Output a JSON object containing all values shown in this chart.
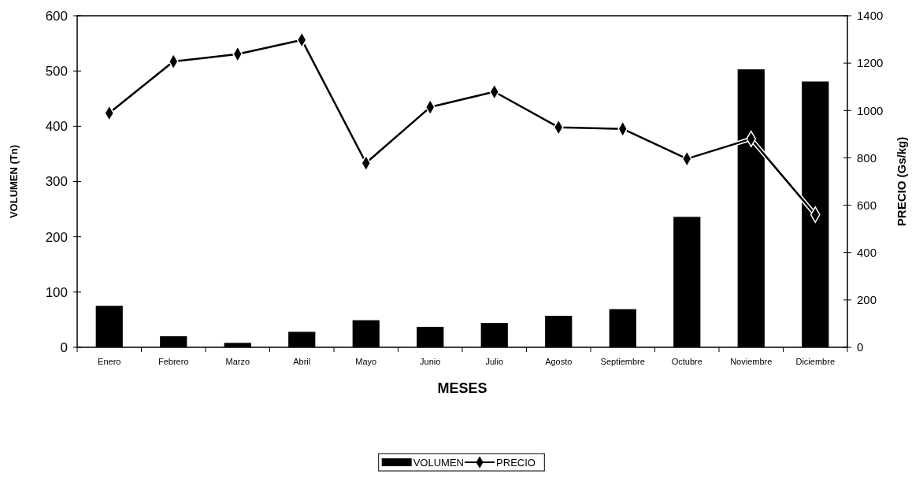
{
  "chart_data": {
    "type": "bar",
    "xlabel": "MESES",
    "ylabel": "VOLUMEN (Tn)",
    "y2label": "PRECIO (Gs/kg)",
    "categories": [
      "Enero",
      "Febrero",
      "Marzo",
      "Abril",
      "Mayo",
      "Junio",
      "Julio",
      "Agosto",
      "Septiembre",
      "Octubre",
      "Noviembre",
      "Diciembre"
    ],
    "series": [
      {
        "name": "VOLUMEN",
        "color": "#000000",
        "values": [
          75,
          20,
          8,
          28,
          49,
          37,
          44,
          57,
          69,
          236,
          503,
          481
        ]
      },
      {
        "name": "PRECIO",
        "type": "line",
        "axis": "y2",
        "color": "#000000",
        "marker": "diamond",
        "line_style": "solid",
        "values": [
          989,
          1207,
          1238,
          1298,
          778,
          1014,
          1079,
          929,
          922,
          796,
          880,
          560
        ]
      }
    ],
    "ylim": [
      0,
      600
    ],
    "yticks": [
      0,
      100,
      200,
      300,
      400,
      500,
      600
    ],
    "y2lim": [
      0,
      1400
    ],
    "y2ticks": [
      0,
      200,
      400,
      600,
      800,
      1000,
      1200,
      1400
    ],
    "grid": false,
    "legend": "bottom"
  }
}
